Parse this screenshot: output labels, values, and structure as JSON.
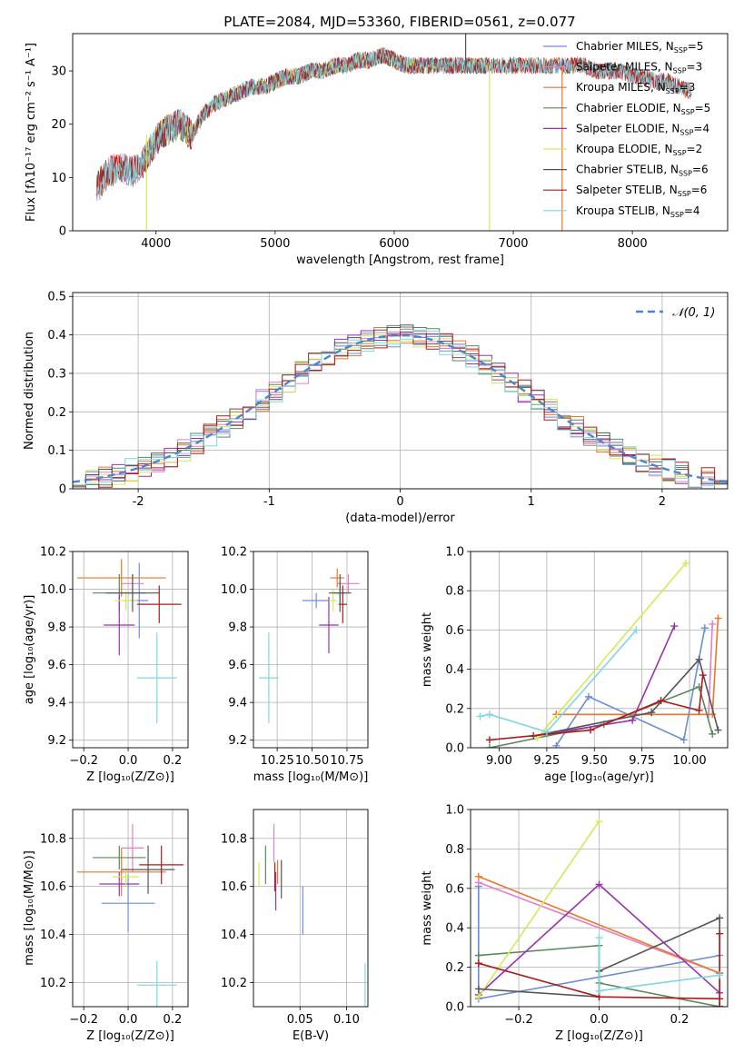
{
  "figure": {
    "title": "PLATE=2084, MJD=53360, FIBERID=0561, z=0.077"
  },
  "colors": {
    "Chabrier MILES": "#6a8fd8",
    "Salpeter MILES": "#e67ec3",
    "Kroupa MILES": "#e8772a",
    "Chabrier ELODIE": "#5a8a5a",
    "Salpeter ELODIE": "#9a32b0",
    "Kroupa ELODIE": "#d6e85a",
    "Chabrier STELIB": "#555555",
    "Salpeter STELIB": "#b01a1a",
    "Kroupa STELIB": "#7fd6e0"
  },
  "chart_data": [
    {
      "id": "spectrum",
      "type": "line",
      "xlabel": "wavelength [Angstrom, rest frame]",
      "ylabel": "Flux [fλ10⁻¹⁷ erg cm⁻² s⁻¹ A⁻¹]",
      "xlim": [
        3300,
        8800
      ],
      "ylim": [
        0,
        37
      ],
      "xticks": [
        4000,
        5000,
        6000,
        7000,
        8000
      ],
      "yticks": [
        0,
        10,
        20,
        30
      ],
      "grid": false,
      "legend_loc": "upper right",
      "legend": [
        {
          "label": "Chabrier MILES, N",
          "sub": "SSP",
          "val": "=5"
        },
        {
          "label": "Salpeter MILES, N",
          "sub": "SSP",
          "val": "=3"
        },
        {
          "label": "Kroupa MILES, N",
          "sub": "SSP",
          "val": "=3"
        },
        {
          "label": "Chabrier ELODIE, N",
          "sub": "SSP",
          "val": "=5"
        },
        {
          "label": "Salpeter ELODIE, N",
          "sub": "SSP",
          "val": "=4"
        },
        {
          "label": "Kroupa ELODIE, N",
          "sub": "SSP",
          "val": "=2"
        },
        {
          "label": "Chabrier STELIB, N",
          "sub": "SSP",
          "val": "=6"
        },
        {
          "label": "Salpeter STELIB, N",
          "sub": "SSP",
          "val": "=6"
        },
        {
          "label": "Kroupa STELIB, N",
          "sub": "SSP",
          "val": "=4"
        }
      ],
      "continuum": {
        "x": [
          3500,
          3600,
          3700,
          3800,
          3900,
          4000,
          4100,
          4200,
          4300,
          4400,
          4500,
          4600,
          4700,
          4800,
          4900,
          5000,
          5100,
          5200,
          5300,
          5400,
          5500,
          5600,
          5700,
          5800,
          5900,
          6000,
          6100,
          6200,
          6300,
          6400,
          6500,
          6600,
          6700,
          6800,
          6900,
          7000,
          7100,
          7200,
          7300,
          7400,
          7500,
          7600,
          7700,
          7800,
          7900,
          8000,
          8100,
          8200,
          8300,
          8400,
          8500
        ],
        "y": [
          8,
          11,
          12,
          11,
          13,
          17,
          19,
          20,
          18,
          22,
          24,
          25,
          26,
          27,
          27,
          28,
          29,
          29,
          30,
          30,
          31,
          31,
          32,
          32,
          33,
          32,
          31,
          31,
          31,
          31,
          31,
          31,
          31,
          31,
          31,
          31,
          31,
          31,
          31,
          31,
          31,
          31,
          30,
          30,
          30,
          29,
          29,
          28,
          28,
          27,
          26
        ]
      },
      "spikes": [
        {
          "x": 3920,
          "y_from": 0,
          "y_to": 18,
          "series": "Kroupa ELODIE"
        },
        {
          "x": 6800,
          "y_from": 0,
          "y_to": 31,
          "series": "Kroupa ELODIE"
        },
        {
          "x": 7410,
          "y_from": 0,
          "y_to": 31,
          "series": "Kroupa MILES"
        },
        {
          "x": 6600,
          "y_from": 31,
          "y_to": 37,
          "series": "Chabrier STELIB"
        }
      ]
    },
    {
      "id": "residuals",
      "type": "histogram",
      "xlabel": "(data-model)/error",
      "ylabel": "Normed distribution",
      "xlim": [
        -2.5,
        2.5
      ],
      "ylim": [
        0,
        0.51
      ],
      "xticks": [
        -2,
        -1,
        0,
        1,
        2
      ],
      "yticks": [
        0.0,
        0.1,
        0.2,
        0.3,
        0.4,
        0.5
      ],
      "grid": true,
      "legend_loc": "upper right",
      "legend": [
        {
          "label": "𝒩(0, 1)"
        }
      ],
      "reference": {
        "name": "𝒩(0, 1)",
        "type": "normal",
        "mu": 0,
        "sigma": 1
      }
    },
    {
      "id": "z-age",
      "type": "errorbar",
      "xlabel": "Z [log₁₀(Z/Z⊙)]",
      "ylabel": "age  [log₁₀(age/yr)]",
      "xlim": [
        -0.25,
        0.27
      ],
      "ylim": [
        9.16,
        10.2
      ],
      "xticks": [
        -0.2,
        0.0,
        0.2
      ],
      "xtick_labels": [
        "−0.2",
        "0.0",
        "0.2"
      ],
      "yticks": [
        9.2,
        9.4,
        9.6,
        9.8,
        10.0,
        10.2
      ],
      "ytick_labels": [
        "9.2",
        "9.4",
        "9.6",
        "9.8",
        "10.0",
        "10.2"
      ],
      "grid": true,
      "points": [
        {
          "series": "Chabrier MILES",
          "x": 0.05,
          "xerr": 0.04,
          "y": 9.94,
          "yerr": 0.2
        },
        {
          "series": "Salpeter MILES",
          "x": 0.02,
          "xerr": 0.05,
          "y": 10.03,
          "yerr": 0.05
        },
        {
          "series": "Kroupa MILES",
          "x": -0.03,
          "xerr": 0.2,
          "y": 10.06,
          "yerr": 0.1
        },
        {
          "series": "Chabrier ELODIE",
          "x": -0.04,
          "xerr": 0.12,
          "y": 9.98,
          "yerr": 0.1
        },
        {
          "series": "Salpeter ELODIE",
          "x": -0.04,
          "xerr": 0.07,
          "y": 9.81,
          "yerr": 0.16
        },
        {
          "series": "Kroupa ELODIE",
          "x": -0.01,
          "xerr": 0.05,
          "y": 9.94,
          "yerr": 0.05
        },
        {
          "series": "Chabrier STELIB",
          "x": 0.02,
          "xerr": 0.12,
          "y": 9.98,
          "yerr": 0.1
        },
        {
          "series": "Salpeter STELIB",
          "x": 0.14,
          "xerr": 0.1,
          "y": 9.92,
          "yerr": 0.1
        },
        {
          "series": "Kroupa STELIB",
          "x": 0.13,
          "xerr": 0.09,
          "y": 9.53,
          "yerr": 0.24
        }
      ]
    },
    {
      "id": "mass-age",
      "type": "errorbar",
      "xlabel": "mass [log₁₀(M/M⊙)]",
      "ylabel": "",
      "xlim": [
        10.08,
        10.9
      ],
      "ylim": [
        9.16,
        10.2
      ],
      "xticks": [
        10.25,
        10.5,
        10.75
      ],
      "xtick_labels": [
        "10.25",
        "10.50",
        "10.75"
      ],
      "yticks": [
        9.2,
        9.4,
        9.6,
        9.8,
        10.0,
        10.2
      ],
      "ytick_labels": [
        "9.2",
        "9.4",
        "9.6",
        "9.8",
        "10.0",
        "10.2"
      ],
      "grid": true,
      "points": [
        {
          "series": "Chabrier MILES",
          "x": 10.53,
          "xerr": 0.1,
          "y": 9.94,
          "yerr": 0.04
        },
        {
          "series": "Salpeter MILES",
          "x": 10.76,
          "xerr": 0.08,
          "y": 10.03,
          "yerr": 0.05
        },
        {
          "series": "Kroupa MILES",
          "x": 10.68,
          "xerr": 0.05,
          "y": 10.06,
          "yerr": 0.05
        },
        {
          "series": "Chabrier ELODIE",
          "x": 10.7,
          "xerr": 0.04,
          "y": 9.98,
          "yerr": 0.06
        },
        {
          "series": "Salpeter ELODIE",
          "x": 10.62,
          "xerr": 0.07,
          "y": 9.81,
          "yerr": 0.15
        },
        {
          "series": "Kroupa ELODIE",
          "x": 10.65,
          "xerr": 0.03,
          "y": 9.94,
          "yerr": 0.06
        },
        {
          "series": "Chabrier STELIB",
          "x": 10.7,
          "xerr": 0.08,
          "y": 9.98,
          "yerr": 0.1
        },
        {
          "series": "Salpeter STELIB",
          "x": 10.72,
          "xerr": 0.03,
          "y": 9.92,
          "yerr": 0.1
        },
        {
          "series": "Kroupa STELIB",
          "x": 10.19,
          "xerr": 0.07,
          "y": 9.53,
          "yerr": 0.24
        }
      ]
    },
    {
      "id": "age-weight",
      "type": "line",
      "xlabel": "age  [log₁₀(age/yr)]",
      "ylabel": "mass weight",
      "xlim": [
        8.85,
        10.2
      ],
      "ylim": [
        0,
        1.0
      ],
      "xticks": [
        9.0,
        9.25,
        9.5,
        9.75,
        10.0
      ],
      "xtick_labels": [
        "9.00",
        "9.25",
        "9.50",
        "9.75",
        "10.00"
      ],
      "yticks": [
        0.0,
        0.2,
        0.4,
        0.6,
        0.8,
        1.0
      ],
      "ytick_labels": [
        "0.0",
        "0.2",
        "0.4",
        "0.6",
        "0.8",
        "1.0"
      ],
      "grid": true,
      "series": [
        {
          "name": "Chabrier MILES",
          "x": [
            9.3,
            9.47,
            9.97,
            10.08,
            10.08
          ],
          "y": [
            0.01,
            0.26,
            0.04,
            0.61,
            0.61
          ]
        },
        {
          "name": "Salpeter MILES",
          "x": [
            9.3,
            10.1,
            10.12
          ],
          "y": [
            0.17,
            0.17,
            0.63
          ]
        },
        {
          "name": "Kroupa MILES",
          "x": [
            9.3,
            10.12,
            10.15
          ],
          "y": [
            0.17,
            0.17,
            0.66
          ]
        },
        {
          "name": "Chabrier ELODIE",
          "x": [
            8.95,
            9.55,
            10.05,
            10.12
          ],
          "y": [
            0.0,
            0.12,
            0.31,
            0.07
          ]
        },
        {
          "name": "Salpeter ELODIE",
          "x": [
            9.18,
            9.7,
            9.92
          ],
          "y": [
            0.06,
            0.14,
            0.62
          ]
        },
        {
          "name": "Kroupa ELODIE",
          "x": [
            9.2,
            9.98
          ],
          "y": [
            0.05,
            0.94
          ]
        },
        {
          "name": "Chabrier STELIB",
          "x": [
            9.18,
            9.8,
            10.05,
            10.15
          ],
          "y": [
            0.06,
            0.18,
            0.45,
            0.09
          ]
        },
        {
          "name": "Salpeter STELIB",
          "x": [
            8.95,
            9.48,
            9.85,
            10.05,
            10.07
          ],
          "y": [
            0.04,
            0.09,
            0.24,
            0.19,
            0.37
          ]
        },
        {
          "name": "Kroupa STELIB",
          "x": [
            8.9,
            8.95,
            9.25,
            9.72
          ],
          "y": [
            0.16,
            0.17,
            0.08,
            0.6
          ]
        }
      ]
    },
    {
      "id": "z-mass",
      "type": "errorbar",
      "xlabel": "Z [log₁₀(Z/Z⊙)]",
      "ylabel": "mass [log₁₀(M/M⊙)]",
      "xlim": [
        -0.25,
        0.27
      ],
      "ylim": [
        10.1,
        10.92
      ],
      "xticks": [
        -0.2,
        0.0,
        0.2
      ],
      "xtick_labels": [
        "−0.2",
        "0.0",
        "0.2"
      ],
      "yticks": [
        10.2,
        10.4,
        10.6,
        10.8
      ],
      "ytick_labels": [
        "10.2",
        "10.4",
        "10.6",
        "10.8"
      ],
      "grid": true,
      "points": [
        {
          "series": "Chabrier MILES",
          "x": 0.0,
          "xerr": 0.12,
          "y": 10.53,
          "yerr": 0.12
        },
        {
          "series": "Salpeter MILES",
          "x": 0.02,
          "xerr": 0.05,
          "y": 10.76,
          "yerr": 0.1
        },
        {
          "series": "Kroupa MILES",
          "x": -0.03,
          "xerr": 0.2,
          "y": 10.66,
          "yerr": 0.1
        },
        {
          "series": "Chabrier ELODIE",
          "x": -0.04,
          "xerr": 0.12,
          "y": 10.72,
          "yerr": 0.05
        },
        {
          "series": "Salpeter ELODIE",
          "x": -0.04,
          "xerr": 0.09,
          "y": 10.61,
          "yerr": 0.05
        },
        {
          "series": "Kroupa ELODIE",
          "x": -0.01,
          "xerr": 0.06,
          "y": 10.64,
          "yerr": 0.04
        },
        {
          "series": "Chabrier STELIB",
          "x": 0.09,
          "xerr": 0.12,
          "y": 10.67,
          "yerr": 0.1
        },
        {
          "series": "Salpeter STELIB",
          "x": 0.15,
          "xerr": 0.1,
          "y": 10.69,
          "yerr": 0.08
        },
        {
          "series": "Kroupa STELIB",
          "x": 0.13,
          "xerr": 0.09,
          "y": 10.19,
          "yerr": 0.1
        }
      ]
    },
    {
      "id": "ebv-mass",
      "type": "errorbar",
      "xlabel": "E(B-V)",
      "ylabel": "",
      "xlim": [
        0.0,
        0.123
      ],
      "ylim": [
        10.1,
        10.92
      ],
      "xticks": [
        0.05,
        0.1
      ],
      "xtick_labels": [
        "0.05",
        "0.10"
      ],
      "yticks": [
        10.2,
        10.4,
        10.6,
        10.8
      ],
      "ytick_labels": [
        "10.2",
        "10.4",
        "10.6",
        "10.8"
      ],
      "grid": true,
      "points": [
        {
          "series": "Chabrier MILES",
          "x": 0.053,
          "xerr": 0.0,
          "y": 10.5,
          "yerr": 0.1
        },
        {
          "series": "Salpeter MILES",
          "x": 0.022,
          "xerr": 0.0,
          "y": 10.78,
          "yerr": 0.08
        },
        {
          "series": "Kroupa MILES",
          "x": 0.026,
          "xerr": 0.0,
          "y": 10.66,
          "yerr": 0.05
        },
        {
          "series": "Chabrier ELODIE",
          "x": 0.013,
          "xerr": 0.0,
          "y": 10.69,
          "yerr": 0.08
        },
        {
          "series": "Salpeter ELODIE",
          "x": 0.024,
          "xerr": 0.0,
          "y": 10.58,
          "yerr": 0.08
        },
        {
          "series": "Kroupa ELODIE",
          "x": 0.006,
          "xerr": 0.0,
          "y": 10.65,
          "yerr": 0.05
        },
        {
          "series": "Chabrier STELIB",
          "x": 0.03,
          "xerr": 0.0,
          "y": 10.63,
          "yerr": 0.08
        },
        {
          "series": "Salpeter STELIB",
          "x": 0.023,
          "xerr": 0.0,
          "y": 10.64,
          "yerr": 0.06
        },
        {
          "series": "Kroupa STELIB",
          "x": 0.12,
          "xerr": 0.0,
          "y": 10.18,
          "yerr": 0.1
        }
      ]
    },
    {
      "id": "z-weight",
      "type": "line",
      "xlabel": "Z [log₁₀(Z/Z⊙)]",
      "ylabel": "mass weight",
      "xlim": [
        -0.32,
        0.32
      ],
      "ylim": [
        0,
        1.0
      ],
      "xticks": [
        -0.2,
        0.0,
        0.2
      ],
      "xtick_labels": [
        "−0.2",
        "0.0",
        "0.2"
      ],
      "yticks": [
        0.0,
        0.2,
        0.4,
        0.6,
        0.8,
        1.0
      ],
      "ytick_labels": [
        "0.0",
        "0.2",
        "0.4",
        "0.6",
        "0.8",
        "1.0"
      ],
      "grid": true,
      "series": [
        {
          "name": "Chabrier MILES",
          "x": [
            -0.3,
            -0.3,
            0.3
          ],
          "y": [
            0.61,
            0.04,
            0.26
          ]
        },
        {
          "name": "Salpeter MILES",
          "x": [
            -0.3,
            0.3,
            0.3
          ],
          "y": [
            0.63,
            0.17,
            0.17
          ]
        },
        {
          "name": "Kroupa MILES",
          "x": [
            -0.3,
            0.3
          ],
          "y": [
            0.66,
            0.17
          ]
        },
        {
          "name": "Chabrier ELODIE",
          "x": [
            -0.3,
            0.0,
            0.0,
            0.3
          ],
          "y": [
            0.26,
            0.31,
            0.12,
            0.0
          ]
        },
        {
          "name": "Salpeter ELODIE",
          "x": [
            -0.3,
            0.0,
            0.3
          ],
          "y": [
            0.06,
            0.62,
            0.07
          ]
        },
        {
          "name": "Kroupa ELODIE",
          "x": [
            -0.3,
            0.0
          ],
          "y": [
            0.05,
            0.94
          ]
        },
        {
          "name": "Chabrier STELIB",
          "x": [
            -0.3,
            0.0,
            0.0,
            0.3,
            0.3
          ],
          "y": [
            0.09,
            0.05,
            0.18,
            0.45,
            0.0
          ]
        },
        {
          "name": "Salpeter STELIB",
          "x": [
            -0.3,
            0.0,
            0.3,
            0.3,
            0.3
          ],
          "y": [
            0.22,
            0.05,
            0.04,
            0.37,
            0.0
          ]
        },
        {
          "name": "Kroupa STELIB",
          "x": [
            0.0,
            0.0,
            0.3
          ],
          "y": [
            0.35,
            0.08,
            0.16
          ]
        }
      ]
    }
  ]
}
